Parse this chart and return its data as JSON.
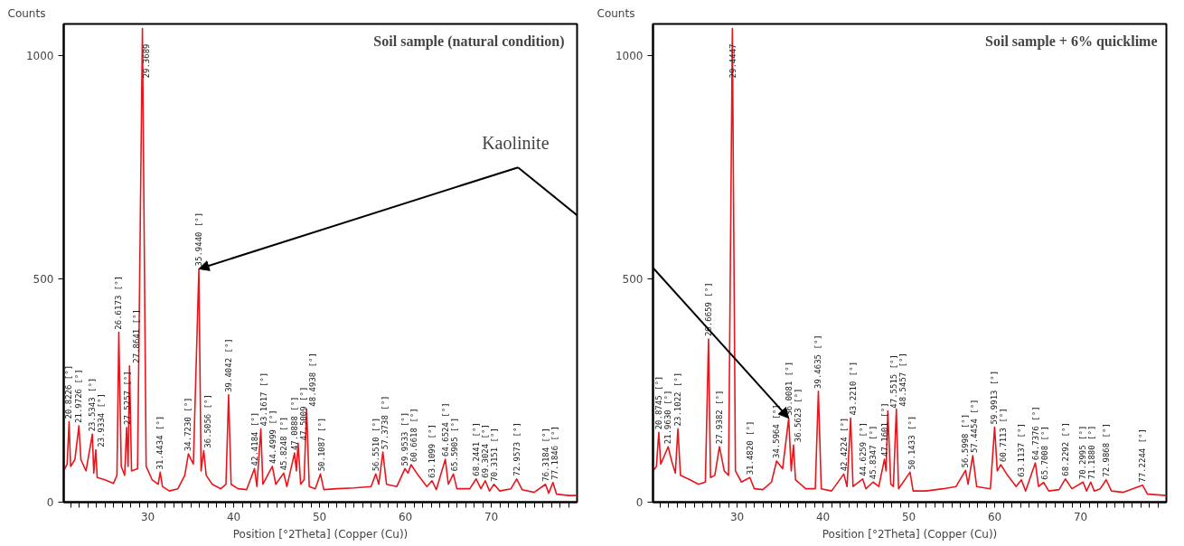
{
  "chart_data": [
    {
      "type": "line",
      "title": "Soil sample  (natural condition)",
      "xlabel": "Position [°2Theta] (Copper (Cu))",
      "ylabel": "Counts",
      "xlim": [
        20.2,
        80
      ],
      "ylim": [
        0,
        1070
      ],
      "xticks": [
        {
          "value": 21,
          "label": null
        },
        {
          "value": 22,
          "label": null
        },
        {
          "value": 23,
          "label": null
        },
        {
          "value": 24,
          "label": null
        },
        {
          "value": 25,
          "label": null
        },
        {
          "value": 26,
          "label": null
        },
        {
          "value": 27,
          "label": null
        },
        {
          "value": 28,
          "label": null
        },
        {
          "value": 29,
          "label": null
        },
        30,
        {
          "value": 31,
          "label": null
        },
        {
          "value": 32,
          "label": null
        },
        {
          "value": 33,
          "label": null
        },
        {
          "value": 34,
          "label": null
        },
        {
          "value": 35,
          "label": null
        },
        {
          "value": 36,
          "label": null
        },
        {
          "value": 37,
          "label": null
        },
        {
          "value": 38,
          "label": null
        },
        {
          "value": 39,
          "label": null
        },
        40,
        {
          "value": 41,
          "label": null
        },
        {
          "value": 42,
          "label": null
        },
        {
          "value": 43,
          "label": null
        },
        {
          "value": 44,
          "label": null
        },
        {
          "value": 45,
          "label": null
        },
        {
          "value": 46,
          "label": null
        },
        {
          "value": 47,
          "label": null
        },
        {
          "value": 48,
          "label": null
        },
        {
          "value": 49,
          "label": null
        },
        50,
        {
          "value": 51,
          "label": null
        },
        {
          "value": 52,
          "label": null
        },
        {
          "value": 53,
          "label": null
        },
        {
          "value": 54,
          "label": null
        },
        {
          "value": 55,
          "label": null
        },
        {
          "value": 56,
          "label": null
        },
        {
          "value": 57,
          "label": null
        },
        {
          "value": 58,
          "label": null
        },
        {
          "value": 59,
          "label": null
        },
        60,
        {
          "value": 61,
          "label": null
        },
        {
          "value": 62,
          "label": null
        },
        {
          "value": 63,
          "label": null
        },
        {
          "value": 64,
          "label": null
        },
        {
          "value": 65,
          "label": null
        },
        {
          "value": 66,
          "label": null
        },
        {
          "value": 67,
          "label": null
        },
        {
          "value": 68,
          "label": null
        },
        {
          "value": 69,
          "label": null
        },
        70,
        {
          "value": 71,
          "label": null
        },
        {
          "value": 72,
          "label": null
        },
        {
          "value": 73,
          "label": null
        },
        {
          "value": 74,
          "label": null
        },
        {
          "value": 75,
          "label": null
        },
        {
          "value": 76,
          "label": null
        },
        {
          "value": 77,
          "label": null
        },
        {
          "value": 78,
          "label": null
        },
        {
          "value": 79,
          "label": null
        }
      ],
      "yticks": [
        0,
        500,
        1000
      ],
      "grid": false,
      "annotations": [
        {
          "text": "20.8226 [°]",
          "x": 20.8226,
          "y": 180
        },
        {
          "text": "21.9726 [°]",
          "x": 21.9726,
          "y": 171
        },
        {
          "text": "23.5343 [°]",
          "x": 23.5343,
          "y": 152
        },
        {
          "text": "23.9334 [°]",
          "x": 23.9334,
          "y": 117
        },
        {
          "text": "26.6173 [°]",
          "x": 26.6173,
          "y": 380
        },
        {
          "text": "27.5257 [°]",
          "x": 27.5257,
          "y": 167
        },
        {
          "text": "27.8641 [°]",
          "x": 27.8641,
          "y": 305
        },
        {
          "text": "29.3689",
          "x": 29.3689,
          "y": 1060
        },
        {
          "text": "31.4434 [°]",
          "x": 31.4434,
          "y": 67
        },
        {
          "text": "34.7230 [°]",
          "x": 34.723,
          "y": 108
        },
        {
          "text": "35.9440 [°]",
          "x": 35.944,
          "y": 522
        },
        {
          "text": "36.5056 [°]",
          "x": 36.5056,
          "y": 115
        },
        {
          "text": "39.4042 [°]",
          "x": 39.4042,
          "y": 240
        },
        {
          "text": "42.4184 [°]",
          "x": 42.4184,
          "y": 75
        },
        {
          "text": "43.1617 [°]",
          "x": 43.1617,
          "y": 164
        },
        {
          "text": "44.4999 [°]",
          "x": 44.4999,
          "y": 80
        },
        {
          "text": "45.8248 [°]",
          "x": 45.8248,
          "y": 65
        },
        {
          "text": "47.0888 [°]",
          "x": 47.0888,
          "y": 110
        },
        {
          "text": "47.5009 [°]",
          "x": 47.5009,
          "y": 132
        },
        {
          "text": "48.4938 [°]",
          "x": 48.4938,
          "y": 208
        },
        {
          "text": "50.1087 [°]",
          "x": 50.1087,
          "y": 63
        },
        {
          "text": "56.5510 [°]",
          "x": 56.551,
          "y": 63
        },
        {
          "text": "57.3738 [°]",
          "x": 57.3738,
          "y": 112
        },
        {
          "text": "59.9533 [°]",
          "x": 59.9533,
          "y": 75
        },
        {
          "text": "60.6618 [°]",
          "x": 60.6618,
          "y": 84
        },
        {
          "text": "63.1099 [°]",
          "x": 63.1099,
          "y": 48
        },
        {
          "text": "64.6524 [°]",
          "x": 64.6524,
          "y": 96
        },
        {
          "text": "65.5905 [°]",
          "x": 65.5905,
          "y": 63
        },
        {
          "text": "68.2441 [°]",
          "x": 68.2441,
          "y": 52
        },
        {
          "text": "69.3024 [°]",
          "x": 69.3024,
          "y": 48
        },
        {
          "text": "70.3151 [°]",
          "x": 70.3151,
          "y": 40
        },
        {
          "text": "72.9573 [°]",
          "x": 72.9573,
          "y": 52
        },
        {
          "text": "76.3184 [°]",
          "x": 76.3184,
          "y": 40
        },
        {
          "text": "77.1846 [°]",
          "x": 77.1846,
          "y": 44
        },
        {
          "text": "Kaolinite",
          "x": 35.944,
          "y": 522
        }
      ],
      "series": [
        {
          "color": "#e8161b",
          "x": [
            20.2,
            20.6,
            20.8226,
            21.0,
            21.5,
            21.9726,
            22.2,
            22.8,
            23.5343,
            23.7,
            23.9334,
            24.1,
            25,
            26,
            26.4,
            26.6173,
            26.9,
            27.3,
            27.5257,
            27.7,
            27.8641,
            28.1,
            28.8,
            29.3689,
            29.8,
            30.5,
            31.2,
            31.4434,
            31.7,
            32.5,
            33.5,
            34.3,
            34.723,
            35.3,
            35.944,
            36.2,
            36.5056,
            36.8,
            37.5,
            38.5,
            39.1,
            39.4042,
            39.7,
            40.5,
            41.5,
            42.4184,
            42.7,
            43.1617,
            43.4,
            44.4999,
            44.9,
            45.8248,
            46.2,
            47.0888,
            47.3,
            47.5009,
            47.8,
            48.2,
            48.4938,
            48.8,
            49.5,
            50.1087,
            50.5,
            52,
            54,
            56,
            56.551,
            56.9,
            57.3738,
            57.8,
            59,
            59.9533,
            60.3,
            60.6618,
            61.5,
            62.5,
            63.1099,
            63.6,
            64.6524,
            65,
            65.5905,
            66,
            67.5,
            68.2441,
            68.8,
            69.3024,
            69.8,
            70.3151,
            71,
            72.3,
            72.9573,
            73.6,
            75,
            76.3184,
            76.7,
            77.1846,
            77.6,
            79,
            80
          ],
          "values": [
            70,
            85,
            180,
            80,
            95,
            171,
            95,
            70,
            152,
            65,
            117,
            55,
            50,
            42,
            60,
            380,
            80,
            60,
            167,
            80,
            305,
            70,
            75,
            1060,
            80,
            50,
            40,
            67,
            35,
            25,
            30,
            60,
            108,
            85,
            522,
            70,
            115,
            60,
            40,
            30,
            40,
            240,
            40,
            30,
            28,
            75,
            35,
            164,
            40,
            80,
            40,
            65,
            35,
            110,
            70,
            132,
            40,
            50,
            208,
            35,
            30,
            63,
            28,
            30,
            32,
            35,
            63,
            40,
            112,
            40,
            35,
            75,
            65,
            84,
            60,
            35,
            48,
            28,
            96,
            40,
            63,
            30,
            30,
            52,
            30,
            48,
            25,
            40,
            25,
            30,
            52,
            28,
            22,
            40,
            20,
            44,
            18,
            15,
            15
          ]
        }
      ]
    },
    {
      "type": "line",
      "title": "Soil sample + 6% quicklime",
      "xlabel": "Position [°2Theta] (Copper (Cu))",
      "ylabel": "Counts",
      "xlim": [
        20.2,
        80
      ],
      "ylim": [
        0,
        1070
      ],
      "xticks": [
        {
          "value": 21,
          "label": null
        },
        {
          "value": 22,
          "label": null
        },
        {
          "value": 23,
          "label": null
        },
        {
          "value": 24,
          "label": null
        },
        {
          "value": 25,
          "label": null
        },
        {
          "value": 26,
          "label": null
        },
        {
          "value": 27,
          "label": null
        },
        {
          "value": 28,
          "label": null
        },
        {
          "value": 29,
          "label": null
        },
        30,
        {
          "value": 31,
          "label": null
        },
        {
          "value": 32,
          "label": null
        },
        {
          "value": 33,
          "label": null
        },
        {
          "value": 34,
          "label": null
        },
        {
          "value": 35,
          "label": null
        },
        {
          "value": 36,
          "label": null
        },
        {
          "value": 37,
          "label": null
        },
        {
          "value": 38,
          "label": null
        },
        {
          "value": 39,
          "label": null
        },
        40,
        {
          "value": 41,
          "label": null
        },
        {
          "value": 42,
          "label": null
        },
        {
          "value": 43,
          "label": null
        },
        {
          "value": 44,
          "label": null
        },
        {
          "value": 45,
          "label": null
        },
        {
          "value": 46,
          "label": null
        },
        {
          "value": 47,
          "label": null
        },
        {
          "value": 48,
          "label": null
        },
        {
          "value": 49,
          "label": null
        },
        50,
        {
          "value": 51,
          "label": null
        },
        {
          "value": 52,
          "label": null
        },
        {
          "value": 53,
          "label": null
        },
        {
          "value": 54,
          "label": null
        },
        {
          "value": 55,
          "label": null
        },
        {
          "value": 56,
          "label": null
        },
        {
          "value": 57,
          "label": null
        },
        {
          "value": 58,
          "label": null
        },
        {
          "value": 59,
          "label": null
        },
        60,
        {
          "value": 61,
          "label": null
        },
        {
          "value": 62,
          "label": null
        },
        {
          "value": 63,
          "label": null
        },
        {
          "value": 64,
          "label": null
        },
        {
          "value": 65,
          "label": null
        },
        {
          "value": 66,
          "label": null
        },
        {
          "value": 67,
          "label": null
        },
        {
          "value": 68,
          "label": null
        },
        {
          "value": 69,
          "label": null
        },
        70,
        {
          "value": 71,
          "label": null
        },
        {
          "value": 72,
          "label": null
        },
        {
          "value": 73,
          "label": null
        },
        {
          "value": 74,
          "label": null
        },
        {
          "value": 75,
          "label": null
        },
        {
          "value": 76,
          "label": null
        },
        {
          "value": 77,
          "label": null
        },
        {
          "value": 78,
          "label": null
        },
        {
          "value": 79,
          "label": null
        }
      ],
      "yticks": [
        0,
        500,
        1000
      ],
      "grid": false,
      "annotations": [
        {
          "text": "20.8745 [°]",
          "x": 20.8745,
          "y": 156
        },
        {
          "text": "21.9630 [°]",
          "x": 21.963,
          "y": 124
        },
        {
          "text": "23.1022 [°]",
          "x": 23.1022,
          "y": 164
        },
        {
          "text": "26.6659 [°]",
          "x": 26.6659,
          "y": 365
        },
        {
          "text": "27.9382 [°]",
          "x": 27.9382,
          "y": 124
        },
        {
          "text": "29.4447",
          "x": 29.4447,
          "y": 1060
        },
        {
          "text": "31.4820 [°]",
          "x": 31.482,
          "y": 55
        },
        {
          "text": "34.5964 [°]",
          "x": 34.5964,
          "y": 92
        },
        {
          "text": "36.0081 [°]",
          "x": 36.0081,
          "y": 188
        },
        {
          "text": "36.5623 [°]",
          "x": 36.5623,
          "y": 128
        },
        {
          "text": "39.4635 [°]",
          "x": 39.4635,
          "y": 248
        },
        {
          "text": "42.4224 [°]",
          "x": 42.4224,
          "y": 63
        },
        {
          "text": "43.2210 [°]",
          "x": 43.221,
          "y": 188
        },
        {
          "text": "44.6259 [°]",
          "x": 44.6259,
          "y": 52
        },
        {
          "text": "45.8347 [°]",
          "x": 45.8347,
          "y": 45
        },
        {
          "text": "47.1601 [°]",
          "x": 47.1601,
          "y": 96
        },
        {
          "text": "47.5515 [°]",
          "x": 47.5515,
          "y": 204
        },
        {
          "text": "48.5457 [°]",
          "x": 48.5457,
          "y": 208
        },
        {
          "text": "50.1433 [°]",
          "x": 50.1433,
          "y": 67
        },
        {
          "text": "56.5998 [°]",
          "x": 56.5998,
          "y": 71
        },
        {
          "text": "57.4454 [°]",
          "x": 57.4454,
          "y": 104
        },
        {
          "text": "59.9913 [°]",
          "x": 59.9913,
          "y": 168
        },
        {
          "text": "60.7113 [°]",
          "x": 60.7113,
          "y": 84
        },
        {
          "text": "63.1137 [°]",
          "x": 63.1137,
          "y": 50
        },
        {
          "text": "64.7376 [°]",
          "x": 64.7376,
          "y": 88
        },
        {
          "text": "65.7008 [°]",
          "x": 65.7008,
          "y": 44
        },
        {
          "text": "68.2292 [°]",
          "x": 68.2292,
          "y": 52
        },
        {
          "text": "70.2995 [°]",
          "x": 70.2995,
          "y": 45
        },
        {
          "text": "71.1880 [°]",
          "x": 71.188,
          "y": 45
        },
        {
          "text": "72.9868 [°]",
          "x": 72.9868,
          "y": 50
        },
        {
          "text": "77.2244 [°]",
          "x": 77.2244,
          "y": 38
        }
      ],
      "series": [
        {
          "color": "#e8161b",
          "x": [
            20.2,
            20.6,
            20.8745,
            21.1,
            21.963,
            22.4,
            22.8,
            23.1022,
            23.4,
            24.5,
            25.5,
            26.3,
            26.6659,
            26.9,
            27.4,
            27.9382,
            28.5,
            29.0,
            29.4447,
            29.8,
            30.5,
            31.482,
            32,
            33,
            34,
            34.5964,
            35.3,
            36.0081,
            36.3,
            36.5623,
            36.8,
            38,
            39.1,
            39.4635,
            39.8,
            41,
            42.4224,
            42.8,
            43.221,
            43.5,
            44.6259,
            45,
            45.8347,
            46.5,
            47.1601,
            47.35,
            47.5515,
            47.9,
            48.2,
            48.5457,
            48.8,
            50.1433,
            50.5,
            52,
            54,
            55.5,
            56.5998,
            56.9,
            57.4454,
            57.9,
            59.5,
            59.9913,
            60.3,
            60.7113,
            61.5,
            62.5,
            63.1137,
            63.6,
            64.7376,
            65.1,
            65.7008,
            66.3,
            67.5,
            68.2292,
            69,
            70.2995,
            70.7,
            71.188,
            71.6,
            72.3,
            72.9868,
            73.6,
            75,
            77.2244,
            77.8,
            80
          ],
          "values": [
            70,
            80,
            156,
            85,
            124,
            90,
            65,
            164,
            60,
            50,
            40,
            45,
            365,
            55,
            60,
            124,
            70,
            60,
            1060,
            70,
            45,
            55,
            30,
            28,
            45,
            92,
            75,
            188,
            70,
            128,
            50,
            30,
            30,
            248,
            30,
            25,
            63,
            35,
            188,
            35,
            52,
            30,
            45,
            35,
            96,
            70,
            204,
            40,
            35,
            208,
            30,
            67,
            25,
            25,
            30,
            35,
            71,
            40,
            104,
            35,
            30,
            168,
            70,
            84,
            60,
            35,
            50,
            25,
            88,
            35,
            44,
            25,
            28,
            52,
            30,
            45,
            25,
            45,
            25,
            30,
            50,
            25,
            22,
            38,
            18,
            15
          ]
        }
      ]
    }
  ]
}
